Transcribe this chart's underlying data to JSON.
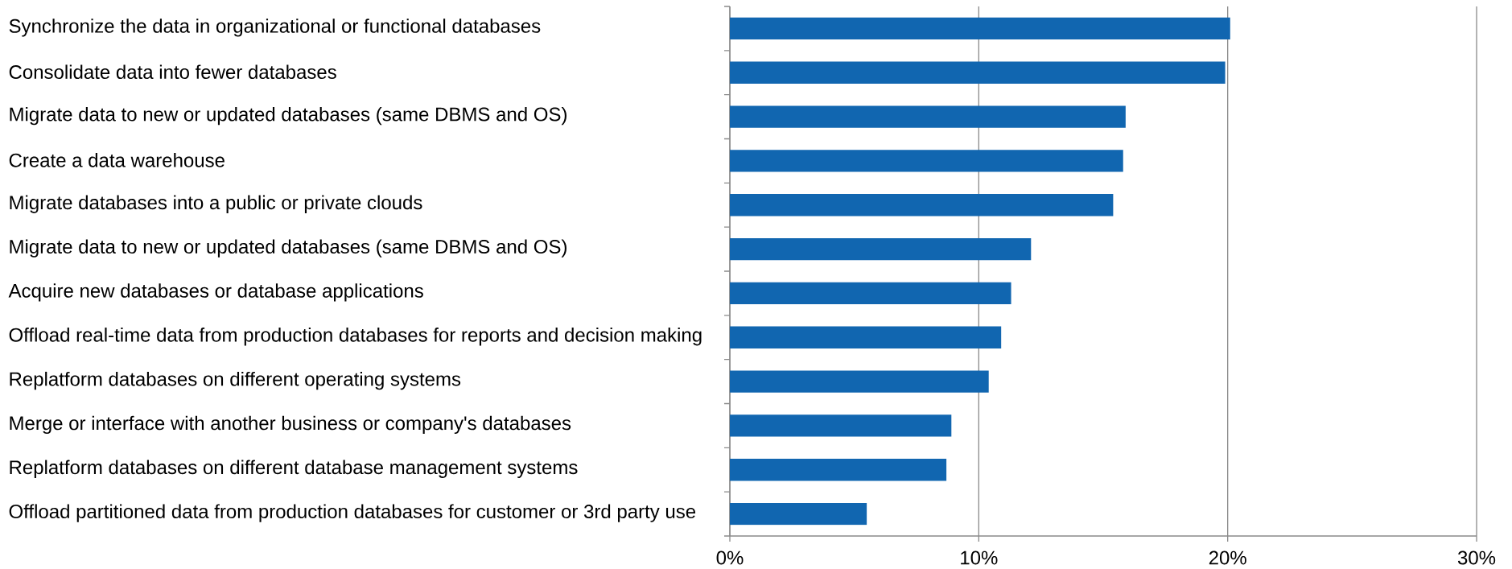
{
  "chart_data": {
    "type": "bar",
    "orientation": "horizontal",
    "categories": [
      "Synchronize the data in organizational or functional databases",
      "Consolidate data into fewer databases",
      "Migrate data to new or updated databases (same DBMS and OS)",
      "Create a data warehouse",
      "Migrate databases into a public or private clouds",
      "Migrate data to new or updated databases (same DBMS and OS)",
      "Acquire new databases or database applications",
      "Offload real-time data from production databases for reports and decision making",
      "Replatform databases on different operating systems",
      "Merge or interface with another business or company's databases",
      "Replatform databases on different database management systems",
      "Offload partitioned data from production databases for customer or 3rd party use"
    ],
    "values": [
      20.1,
      19.9,
      15.9,
      15.8,
      15.4,
      12.1,
      11.3,
      10.9,
      10.4,
      8.9,
      8.7,
      5.5
    ],
    "color": "#1166b0",
    "xlim": [
      0,
      30
    ],
    "xticks": [
      {
        "value": 0,
        "label": "0%"
      },
      {
        "value": 10,
        "label": "10%"
      },
      {
        "value": 20,
        "label": "20%"
      },
      {
        "value": 30,
        "label": "30%"
      }
    ],
    "grid": "x"
  }
}
